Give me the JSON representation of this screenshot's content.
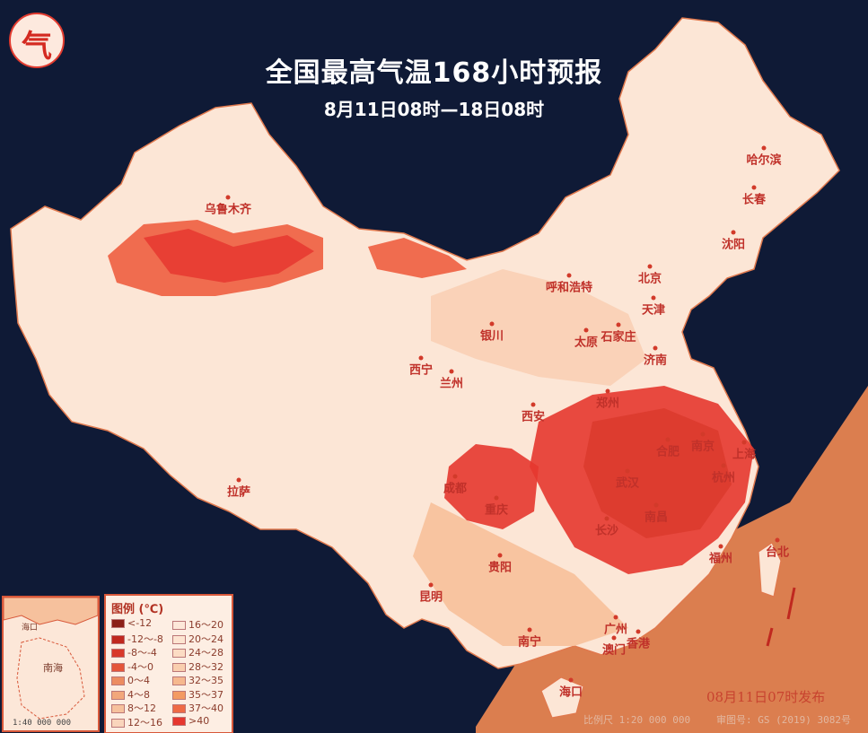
{
  "header": {
    "title": "全国最高气温168小时预报",
    "subtitle": "8月11日08时—18日08时"
  },
  "logo": {
    "glyph": "气",
    "name": "logo-icon"
  },
  "cities": [
    {
      "name": "乌鲁木齐"
    },
    {
      "name": "哈尔滨"
    },
    {
      "name": "长春"
    },
    {
      "name": "沈阳"
    },
    {
      "name": "呼和浩特"
    },
    {
      "name": "北京"
    },
    {
      "name": "天津"
    },
    {
      "name": "银川"
    },
    {
      "name": "太原"
    },
    {
      "name": "石家庄"
    },
    {
      "name": "济南"
    },
    {
      "name": "西宁"
    },
    {
      "name": "兰州"
    },
    {
      "name": "郑州"
    },
    {
      "name": "西安"
    },
    {
      "name": "合肥"
    },
    {
      "name": "南京"
    },
    {
      "name": "上海"
    },
    {
      "name": "杭州"
    },
    {
      "name": "成都"
    },
    {
      "name": "武汉"
    },
    {
      "name": "重庆"
    },
    {
      "name": "南昌"
    },
    {
      "name": "长沙"
    },
    {
      "name": "福州"
    },
    {
      "name": "拉萨"
    },
    {
      "name": "贵阳"
    },
    {
      "name": "台北"
    },
    {
      "name": "昆明"
    },
    {
      "name": "广州"
    },
    {
      "name": "澳门"
    },
    {
      "name": "香港"
    },
    {
      "name": "南宁"
    },
    {
      "name": "海口"
    }
  ],
  "legend": {
    "title": "图例 (℃)",
    "items": [
      {
        "label": "<-12",
        "color": "#8b1f17"
      },
      {
        "label": "-12～-8",
        "color": "#c0281f"
      },
      {
        "label": "-8～-4",
        "color": "#d8382a"
      },
      {
        "label": "-4～0",
        "color": "#e4553a"
      },
      {
        "label": "0～4",
        "color": "#ec8c60"
      },
      {
        "label": "4～8",
        "color": "#f2a77b"
      },
      {
        "label": "8～12",
        "color": "#f6c19d"
      },
      {
        "label": "12～16",
        "color": "#f9d5bc"
      },
      {
        "label": "16～20",
        "color": "#fde8d9"
      },
      {
        "label": "20～24",
        "color": "#fde4d1"
      },
      {
        "label": "24～28",
        "color": "#fcdcc4"
      },
      {
        "label": "28～32",
        "color": "#f9ceae"
      },
      {
        "label": "32～35",
        "color": "#f6b88e"
      },
      {
        "label": "35～37",
        "color": "#f39a62"
      },
      {
        "label": "37～40",
        "color": "#ef6a45"
      },
      {
        "label": ">40",
        "color": "#e6372f"
      }
    ]
  },
  "inset": {
    "labels": [
      "海口",
      "南海"
    ],
    "scale": "1:40 000 000"
  },
  "issued": "08月11日07时发布",
  "footer": {
    "scale": "比例尺 1:20 000 000",
    "review": "审图号: GS (2019) 3082号"
  }
}
